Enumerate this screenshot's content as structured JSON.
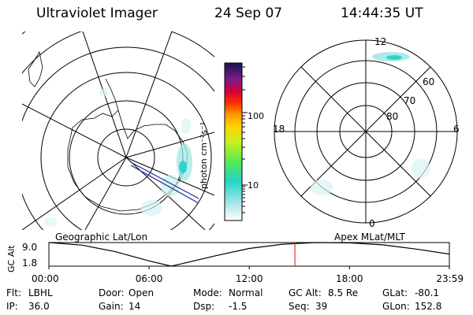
{
  "header": {
    "instrument": "Ultraviolet Imager",
    "date": "24 Sep 07",
    "time": "14:44:35 UT"
  },
  "colorbar": {
    "unit_label": "photon cm⁻²s⁻¹",
    "ticks": [
      "100",
      "10"
    ]
  },
  "mlt_map": {
    "mlt_labels": [
      "12",
      "18",
      "6",
      "0"
    ],
    "lat_labels": [
      "60",
      "70",
      "80"
    ]
  },
  "geo_label": "Geographic Lat/Lon",
  "apex_label": "Apex MLat/MLT",
  "altitude_plot": {
    "ylabel": "GC Alt",
    "yticks": [
      "9.0",
      "1.8"
    ],
    "xticks": [
      "00:00",
      "06:00",
      "12:00",
      "18:00",
      "23:59"
    ],
    "marker_time_label": "14:44"
  },
  "chart_data": {
    "type": "line",
    "title": "",
    "ylabel": "GC Alt",
    "x": [
      "00:00",
      "02:00",
      "04:00",
      "06:00",
      "07:20",
      "08:00",
      "10:00",
      "12:00",
      "14:00",
      "16:00",
      "18:00",
      "20:00",
      "22:00",
      "23:59"
    ],
    "series": [
      {
        "values": [
          9.0,
          8.2,
          6.2,
          3.4,
          1.8,
          2.6,
          5.0,
          7.2,
          8.5,
          9.0,
          8.9,
          8.3,
          7.0,
          5.5
        ]
      }
    ],
    "ylim": [
      1.8,
      9.0
    ],
    "marker_x": "14:44"
  },
  "status": {
    "flt_label": "Flt:",
    "flt": "LBHL",
    "ip_label": "IP:",
    "ip": "36.0",
    "door_label": "Door:",
    "door": "Open",
    "gain_label": "Gain:",
    "gain": "14",
    "mode_label": "Mode:",
    "mode": "Normal",
    "dsp_label": "Dsp:",
    "dsp": "-1.5",
    "gcalt_label": "GC Alt:",
    "gcalt": "8.5 Re",
    "seq_label": "Seq:",
    "seq": "39",
    "glat_label": "GLat:",
    "glat": "-80.1",
    "glon_label": "GLon:",
    "glon": "152.8"
  },
  "colors": {
    "marker": "#e03030",
    "track": "#1a2a9a"
  }
}
